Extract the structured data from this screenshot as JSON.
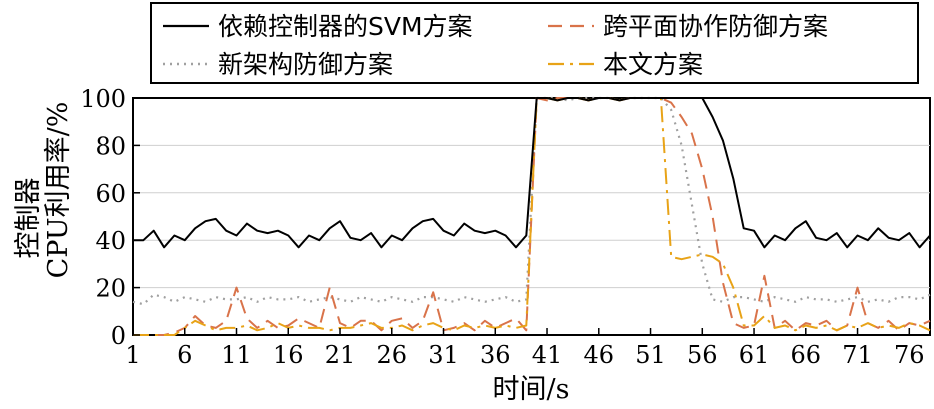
{
  "chart_data": {
    "type": "line",
    "xlabel": "时间/s",
    "ylabel_line1": "控制器",
    "ylabel_line2": "CPU利用率/%",
    "xlim": [
      1,
      78
    ],
    "ylim": [
      0,
      100
    ],
    "x_ticks": [
      1,
      6,
      11,
      16,
      21,
      26,
      31,
      36,
      41,
      46,
      51,
      56,
      61,
      66,
      71,
      76
    ],
    "y_ticks": [
      0,
      20,
      40,
      60,
      80,
      100
    ],
    "legend_placement": "top",
    "x": [
      1,
      2,
      3,
      4,
      5,
      6,
      7,
      8,
      9,
      10,
      11,
      12,
      13,
      14,
      15,
      16,
      17,
      18,
      19,
      20,
      21,
      22,
      23,
      24,
      25,
      26,
      27,
      28,
      29,
      30,
      31,
      32,
      33,
      34,
      35,
      36,
      37,
      38,
      39,
      40,
      41,
      42,
      43,
      44,
      45,
      46,
      47,
      48,
      49,
      50,
      51,
      52,
      53,
      54,
      55,
      56,
      57,
      58,
      59,
      60,
      61,
      62,
      63,
      64,
      65,
      66,
      67,
      68,
      69,
      70,
      71,
      72,
      73,
      74,
      75,
      76,
      77,
      78
    ],
    "series": [
      {
        "name": "依赖控制器的SVM方案",
        "color": "#000000",
        "dash": "solid",
        "values": [
          40,
          40,
          44,
          37,
          42,
          40,
          45,
          48,
          49,
          44,
          42,
          47,
          44,
          43,
          44,
          42,
          37,
          42,
          40,
          45,
          48,
          41,
          40,
          43,
          37,
          42,
          40,
          45,
          48,
          49,
          44,
          42,
          47,
          44,
          43,
          44,
          42,
          37,
          42,
          100,
          100,
          99,
          100,
          100,
          99,
          100,
          100,
          99,
          100,
          100,
          100,
          100,
          100,
          100,
          100,
          100,
          92,
          82,
          66,
          45,
          44,
          37,
          42,
          40,
          45,
          48,
          41,
          40,
          43,
          37,
          42,
          40,
          45,
          41,
          40,
          43,
          37,
          42
        ]
      },
      {
        "name": "跨平面协作防御方案",
        "color": "#d9734a",
        "dash": "dashed",
        "values": [
          0,
          0,
          0,
          0,
          1,
          3,
          8,
          4,
          3,
          6,
          20,
          7,
          3,
          6,
          3,
          4,
          7,
          5,
          3,
          20,
          5,
          3,
          6,
          6,
          2,
          6,
          7,
          3,
          6,
          18,
          2,
          3,
          5,
          2,
          6,
          3,
          5,
          7,
          2,
          100,
          99,
          100,
          100,
          100,
          99,
          100,
          100,
          99,
          100,
          100,
          100,
          100,
          98,
          92,
          85,
          70,
          50,
          22,
          5,
          3,
          4,
          25,
          3,
          6,
          2,
          5,
          4,
          6,
          2,
          4,
          20,
          5,
          3,
          6,
          2,
          5,
          4,
          6
        ]
      },
      {
        "name": "新架构防御方案",
        "color": "#a0a0a0",
        "dash": "dotted",
        "values": [
          14,
          13,
          17,
          16,
          14,
          16,
          15,
          14,
          16,
          15,
          15,
          16,
          14,
          16,
          15,
          15,
          16,
          14,
          15,
          16,
          15,
          14,
          16,
          15,
          14,
          16,
          15,
          14,
          16,
          16,
          15,
          14,
          16,
          15,
          14,
          15,
          16,
          14,
          15,
          100,
          100,
          100,
          99,
          100,
          100,
          100,
          100,
          99,
          100,
          100,
          100,
          100,
          95,
          80,
          55,
          30,
          15,
          14,
          16,
          16,
          15,
          14,
          16,
          15,
          14,
          16,
          15,
          15,
          14,
          15,
          16,
          14,
          15,
          14,
          16,
          16,
          15,
          17
        ]
      },
      {
        "name": "本文方案",
        "color": "#e8a317",
        "dash": "dashdot",
        "values": [
          0,
          0,
          0,
          0,
          0,
          3,
          6,
          4,
          2,
          3,
          3,
          4,
          2,
          3,
          5,
          3,
          4,
          3,
          3,
          2,
          3,
          3,
          4,
          5,
          3,
          3,
          4,
          2,
          4,
          5,
          3,
          2,
          4,
          3,
          4,
          3,
          4,
          3,
          4,
          100,
          100,
          99,
          100,
          100,
          99,
          100,
          100,
          99,
          100,
          100,
          100,
          100,
          33,
          32,
          33,
          34,
          33,
          30,
          20,
          4,
          4,
          8,
          3,
          4,
          2,
          4,
          3,
          4,
          2,
          4,
          3,
          5,
          3,
          4,
          3,
          5,
          4,
          2
        ]
      }
    ]
  }
}
